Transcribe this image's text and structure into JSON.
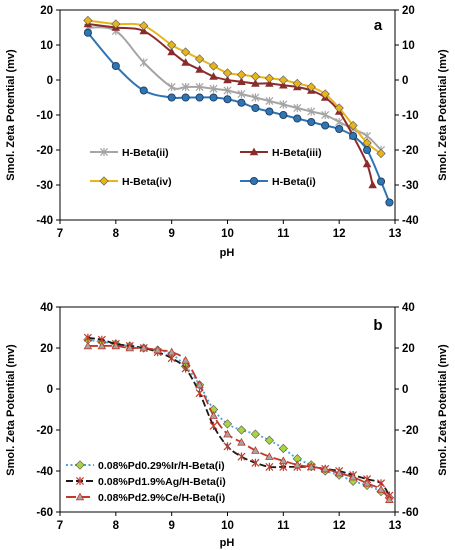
{
  "chart_data": [
    {
      "type": "line",
      "panel_label": "a",
      "xlabel": "pH",
      "ylabel": "Smol. Zeta Potential (mv)",
      "ylabel_right": "Smol. Zeta Potential (mv)",
      "xlim": [
        7,
        13
      ],
      "ylim": [
        -40,
        20
      ],
      "xticks": [
        7,
        8,
        9,
        10,
        11,
        12,
        13
      ],
      "yticks": [
        20,
        10,
        0,
        -10,
        -20,
        -30,
        -40
      ],
      "grid": false,
      "series": [
        {
          "name": "H-Beta(ii)",
          "color": "#a5a5a5",
          "marker": "star",
          "x": [
            7.5,
            8.0,
            8.5,
            9.0,
            9.25,
            9.5,
            9.75,
            10.0,
            10.25,
            10.5,
            10.75,
            11.0,
            11.25,
            11.5,
            11.75,
            12.0,
            12.25,
            12.5,
            12.75
          ],
          "y": [
            15,
            14,
            5,
            -2,
            -2,
            -2,
            -2.5,
            -3,
            -4,
            -5,
            -6,
            -7,
            -8,
            -9,
            -10,
            -12,
            -14,
            -16,
            -20
          ]
        },
        {
          "name": "H-Beta(iii)",
          "color": "#8b2c2c",
          "marker": "triangle",
          "x": [
            7.5,
            8.0,
            8.5,
            9.0,
            9.25,
            9.5,
            9.75,
            10.0,
            10.25,
            10.5,
            10.75,
            11.0,
            11.25,
            11.5,
            11.75,
            12.0,
            12.25,
            12.5,
            12.6
          ],
          "y": [
            16,
            15,
            14,
            8,
            5,
            3,
            1,
            0,
            -0.5,
            -1,
            -1,
            -1.5,
            -2,
            -3,
            -5,
            -9,
            -16,
            -24,
            -30
          ]
        },
        {
          "name": "H-Beta(iv)",
          "color": "#e8b41c",
          "marker": "diamond",
          "x": [
            7.5,
            8.0,
            8.5,
            9.0,
            9.25,
            9.5,
            9.75,
            10.0,
            10.25,
            10.5,
            10.75,
            11.0,
            11.25,
            11.5,
            11.75,
            12.0,
            12.25,
            12.5,
            12.75
          ],
          "y": [
            17,
            16,
            15.5,
            10,
            8,
            6,
            4,
            2,
            1.5,
            1,
            0.5,
            0,
            -1,
            -2,
            -4,
            -8,
            -13,
            -18,
            -21
          ]
        },
        {
          "name": "H-Beta(i)",
          "color": "#2e75b6",
          "marker": "circle",
          "x": [
            7.5,
            8.0,
            8.5,
            9.0,
            9.25,
            9.5,
            9.75,
            10.0,
            10.25,
            10.5,
            10.75,
            11.0,
            11.25,
            11.5,
            11.75,
            12.0,
            12.25,
            12.5,
            12.75,
            12.9
          ],
          "y": [
            13.5,
            4,
            -3,
            -5,
            -5,
            -5,
            -5,
            -5.5,
            -6.5,
            -8,
            -9,
            -10,
            -11,
            -12,
            -13,
            -14,
            -16,
            -20,
            -29,
            -35
          ]
        }
      ]
    },
    {
      "type": "line",
      "panel_label": "b",
      "xlabel": "pH",
      "ylabel": "Smol. Zeta Potential (mv)",
      "ylabel_right": "Smol. Zeta Potential (mv)",
      "xlim": [
        7,
        13
      ],
      "ylim": [
        -60,
        40
      ],
      "xticks": [
        7,
        8,
        9,
        10,
        11,
        12,
        13
      ],
      "yticks": [
        40,
        20,
        0,
        -20,
        -40,
        -60
      ],
      "grid": false,
      "series": [
        {
          "name": "0.08%Pd0.29%Ir/H-Beta(i)",
          "color": "#4aa3df",
          "marker_color": "#a8d442",
          "marker": "diamond",
          "dash": "dotted",
          "x": [
            7.5,
            7.75,
            8.0,
            8.25,
            8.5,
            8.75,
            9.0,
            9.25,
            9.5,
            9.75,
            10.0,
            10.25,
            10.5,
            10.75,
            11.0,
            11.25,
            11.5,
            11.75,
            12.0,
            12.25,
            12.5,
            12.75,
            12.9
          ],
          "y": [
            24,
            23,
            22,
            21,
            20,
            19,
            17,
            11,
            2,
            -10,
            -17,
            -20,
            -22,
            -25,
            -29,
            -34,
            -37,
            -40,
            -42,
            -45,
            -47,
            -50,
            -53
          ]
        },
        {
          "name": "0.08%Pd1.9%Ag/H-Beta(i)",
          "color": "#1a1a1a",
          "marker_color": "#c0392b",
          "marker": "star",
          "dash": "dashed",
          "x": [
            7.5,
            7.75,
            8.0,
            8.25,
            8.5,
            8.75,
            9.0,
            9.25,
            9.5,
            9.75,
            10.0,
            10.25,
            10.5,
            10.75,
            11.0,
            11.25,
            11.5,
            11.75,
            12.0,
            12.25,
            12.5,
            12.75,
            12.9
          ],
          "y": [
            25,
            24,
            22,
            21,
            20,
            18,
            15,
            10,
            -2,
            -18,
            -28,
            -33,
            -36,
            -38,
            -38,
            -38,
            -38,
            -39,
            -40,
            -42,
            -44,
            -46,
            -52
          ]
        },
        {
          "name": "0.08%Pd2.9%Ce/H-Beta(i)",
          "color": "#c0392b",
          "marker_color": "#a5a5a5",
          "marker": "triangle",
          "dash": "long-dash",
          "x": [
            7.5,
            7.75,
            8.0,
            8.25,
            8.5,
            8.75,
            9.0,
            9.25,
            9.5,
            9.75,
            10.0,
            10.25,
            10.5,
            10.75,
            11.0,
            11.25,
            11.5,
            11.75,
            12.0,
            12.25,
            12.5,
            12.75,
            12.9
          ],
          "y": [
            21,
            21,
            21,
            20,
            20,
            19,
            18,
            14,
            2,
            -13,
            -22,
            -26,
            -30,
            -33,
            -35,
            -37,
            -38,
            -39,
            -41,
            -43,
            -46,
            -49,
            -54
          ]
        }
      ]
    }
  ]
}
